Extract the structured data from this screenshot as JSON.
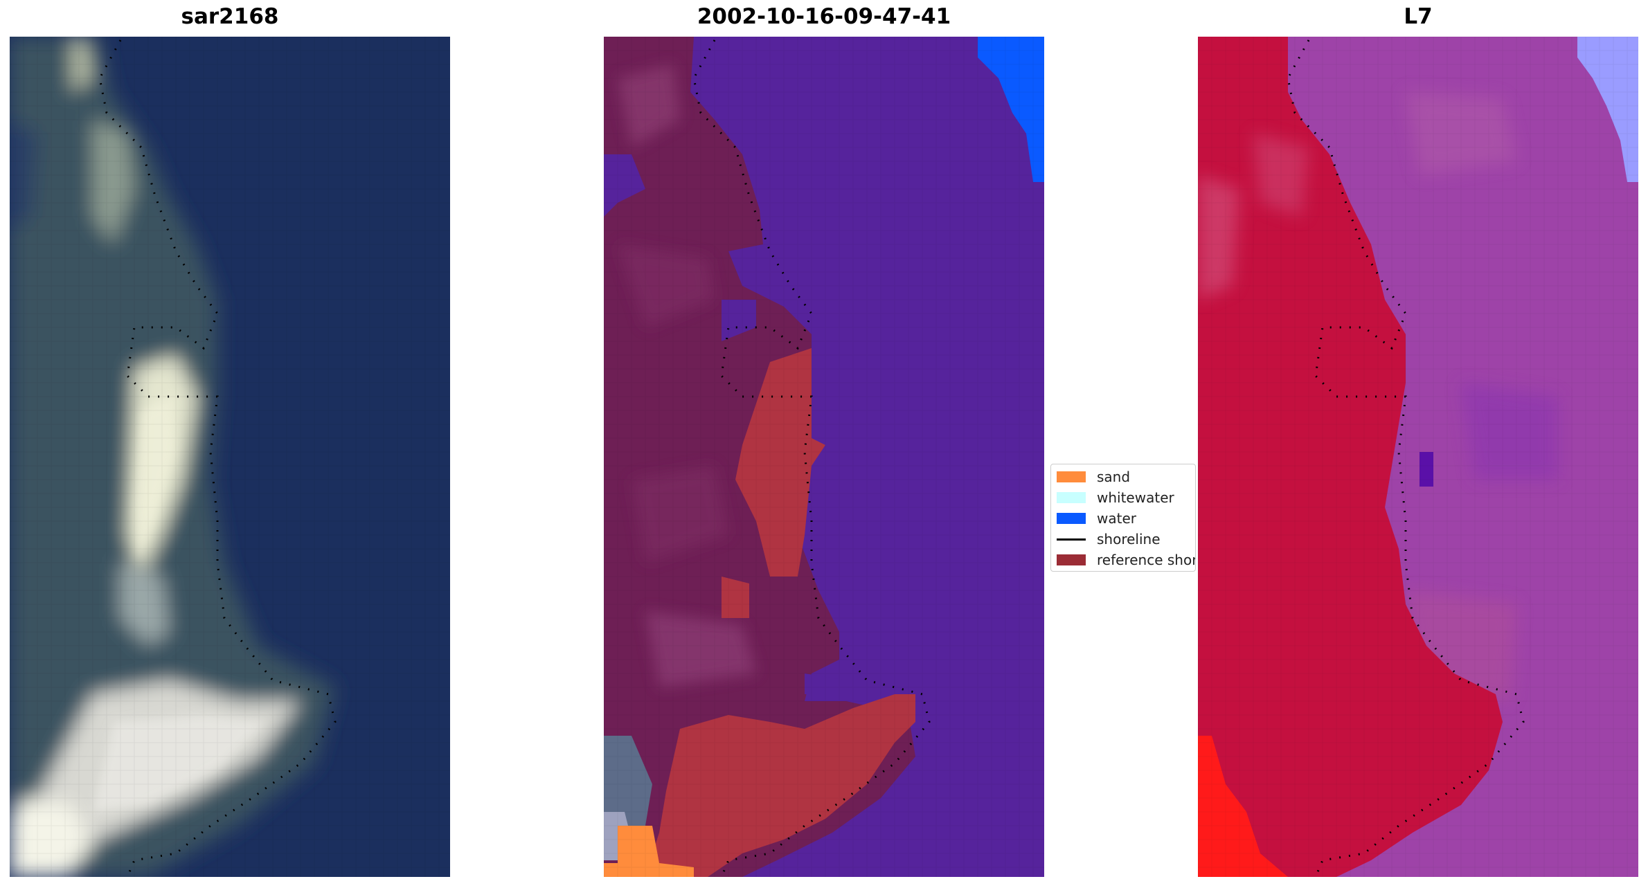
{
  "panels": [
    {
      "title": "sar2168"
    },
    {
      "title": "2002-10-16-09-47-41"
    },
    {
      "title": "L7"
    }
  ],
  "legend": {
    "items": [
      {
        "label": "sand",
        "color": "#ff8c3c",
        "type": "patch"
      },
      {
        "label": "whitewater",
        "color": "#c8ffff",
        "type": "patch"
      },
      {
        "label": "water",
        "color": "#0a5aff",
        "type": "patch"
      },
      {
        "label": "shoreline",
        "color": "#000000",
        "type": "line"
      },
      {
        "label": "reference shoreline",
        "color": "#9b2c35",
        "type": "patch"
      }
    ]
  },
  "colors": {
    "rgb_water": "#1a2e5c",
    "rgb_land": "#3e5560",
    "rgb_bright": "#e6e8d2",
    "class_water": "#56239c",
    "class_land": "#6e1f55",
    "class_sand_ref": "#b03442",
    "class_water_blue": "#0a5aff",
    "class_sand": "#ff8c3c",
    "nir_water": "#9e43a8",
    "nir_land": "#c4103f",
    "nir_red": "#ff1a1a",
    "nir_lilac": "#9a9cff"
  }
}
